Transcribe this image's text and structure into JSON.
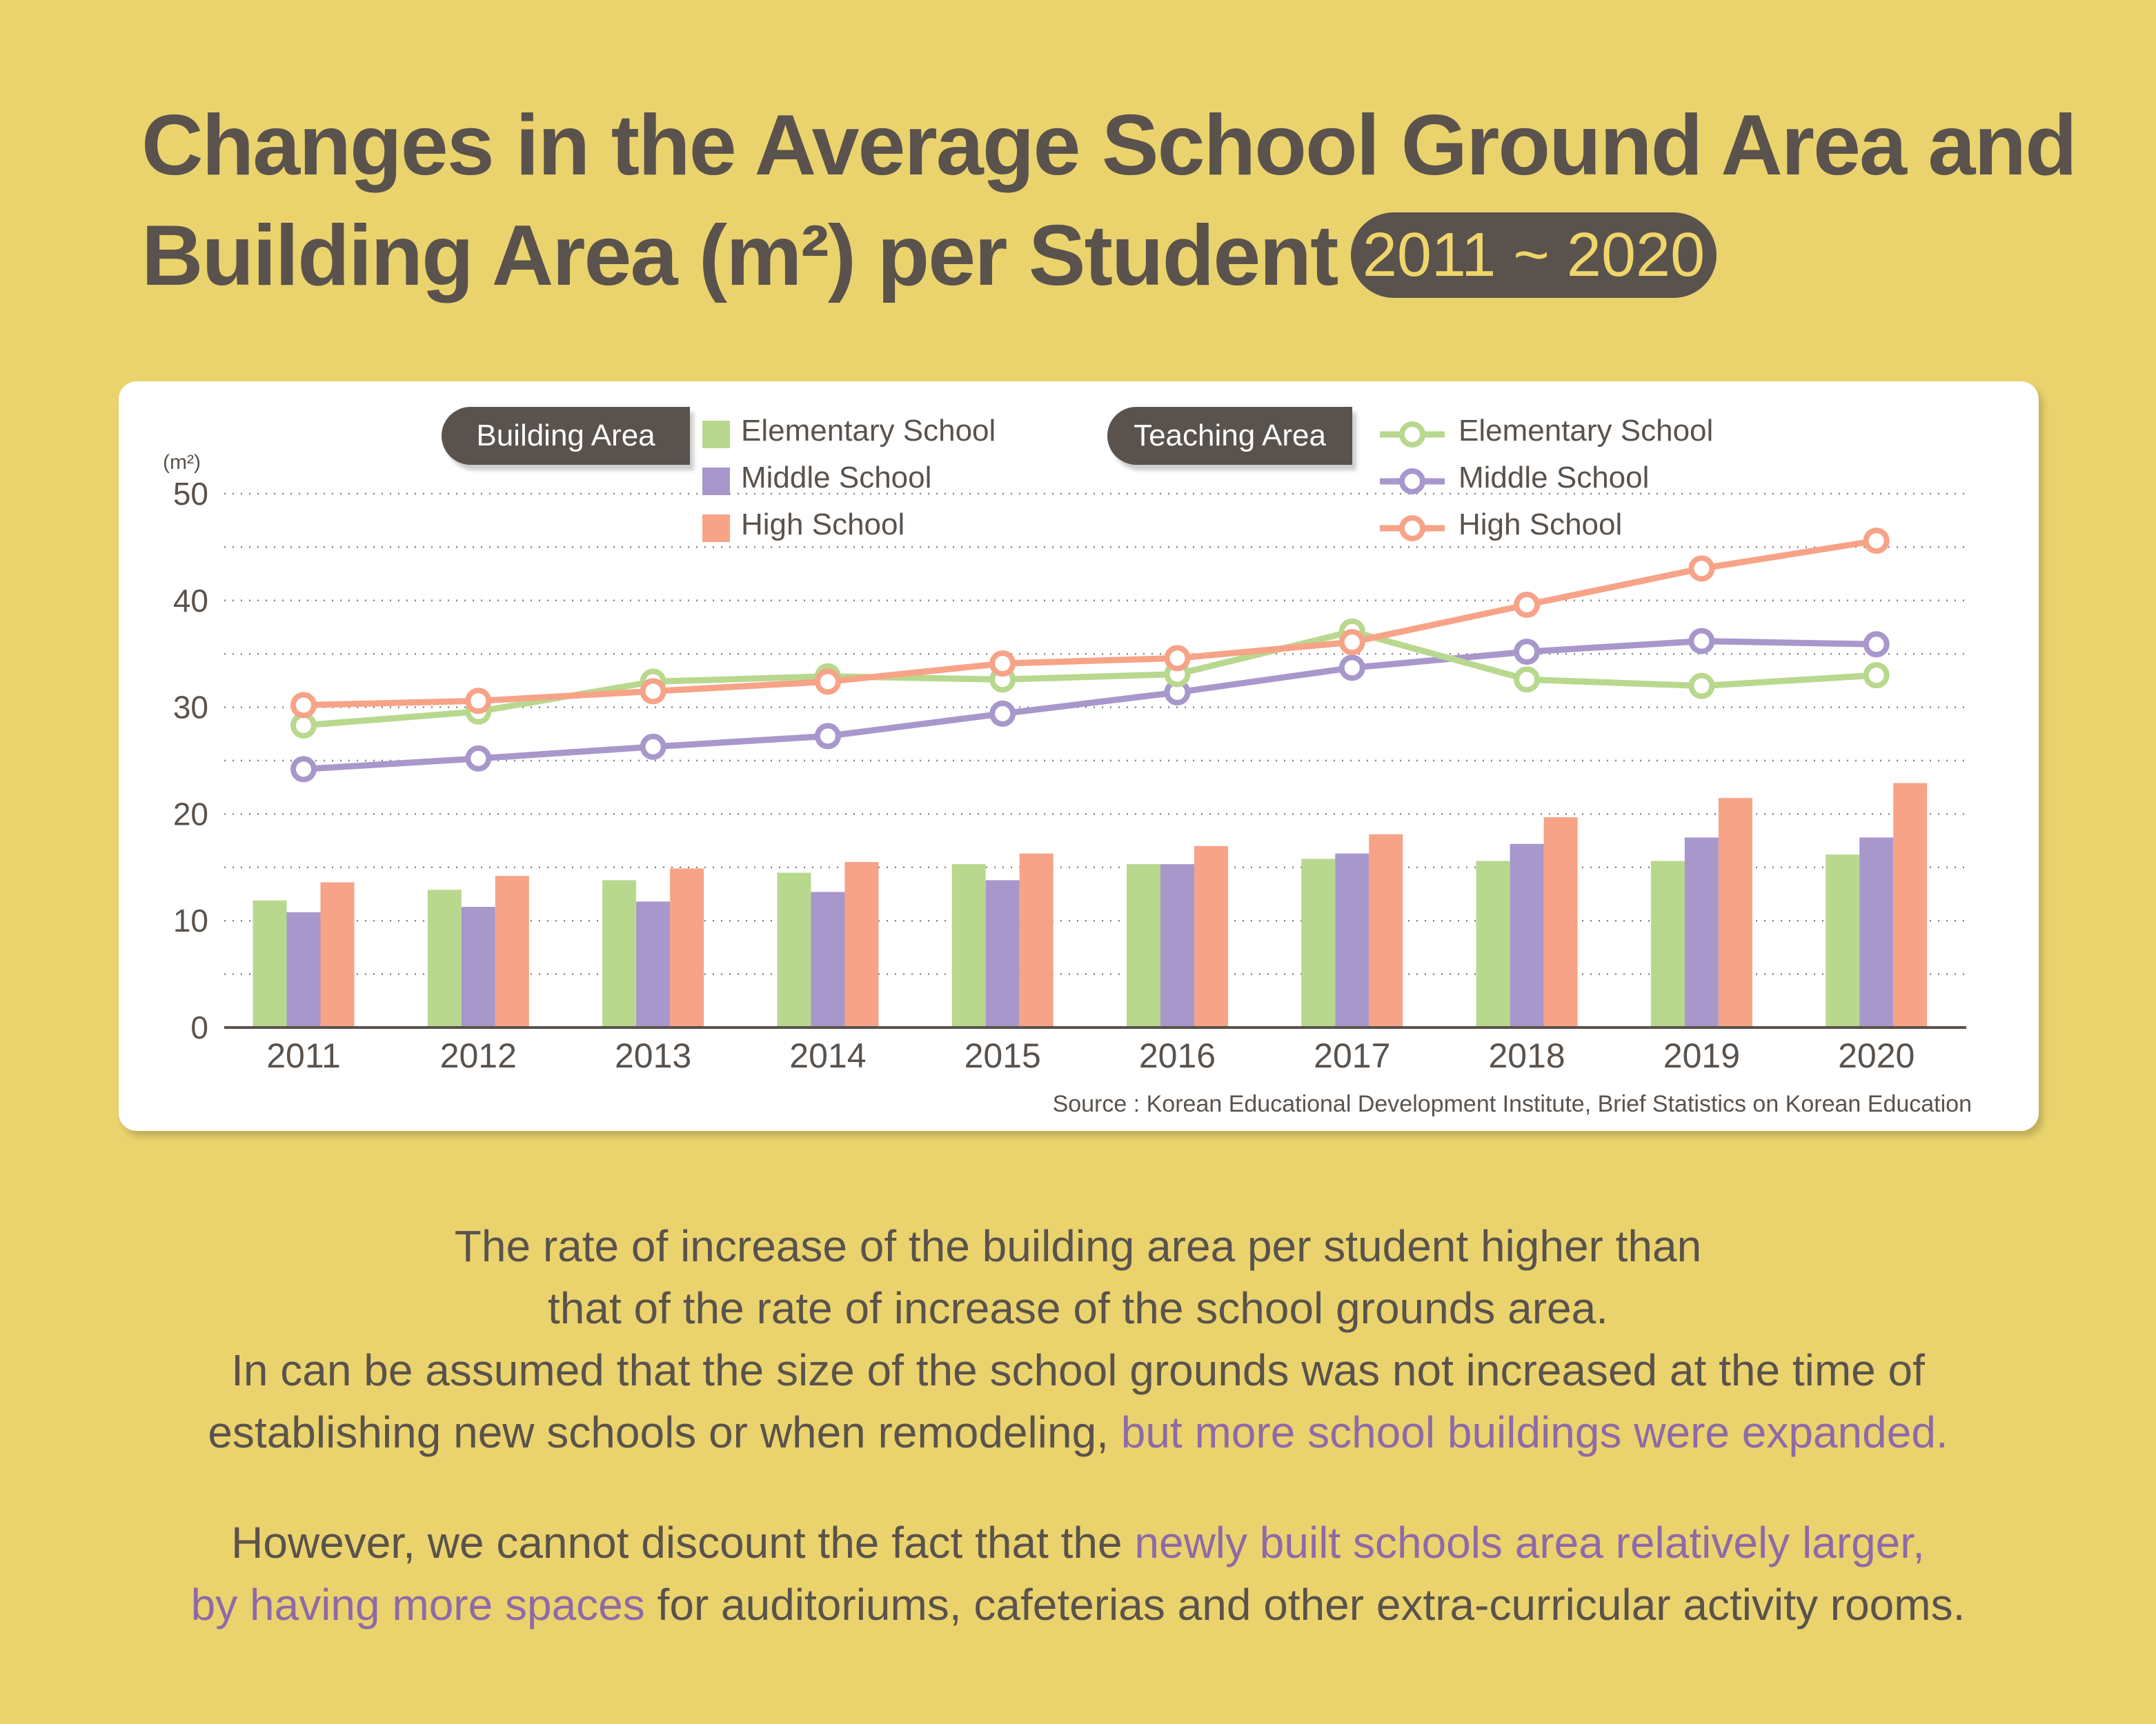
{
  "title": {
    "line1": "Changes in the Average School Ground Area and",
    "line2": "Building Area (m²) per Student",
    "range": "2011 ~ 2020"
  },
  "legend": {
    "building_label": "Building Area",
    "teaching_label": "Teaching Area",
    "building_items": [
      "Elementary School",
      "Middle School",
      "High School"
    ],
    "teaching_items": [
      "Elementary School",
      "Middle School",
      "High School"
    ]
  },
  "colors": {
    "elementary": "#b8d88e",
    "middle": "#a897cb",
    "high": "#f7a387",
    "background": "#ead36d",
    "text": "#5a524c",
    "highlight": "#8e6aa8"
  },
  "chart_data": {
    "type": "bar+line",
    "unit_label": "(m²)",
    "ylim": [
      0,
      50
    ],
    "yticks": [
      "0",
      "10",
      "20",
      "30",
      "40",
      "50"
    ],
    "categories": [
      "2011",
      "2012",
      "2013",
      "2014",
      "2015",
      "2016",
      "2017",
      "2018",
      "2019",
      "2020"
    ],
    "grid": "dotted",
    "bar_series": [
      {
        "name": "Elementary School",
        "color": "#b8d88e",
        "values": [
          11.9,
          12.9,
          13.8,
          14.5,
          15.3,
          15.3,
          15.8,
          15.6,
          15.6,
          16.2
        ]
      },
      {
        "name": "Middle School",
        "color": "#a897cb",
        "values": [
          10.8,
          11.3,
          11.8,
          12.7,
          13.8,
          15.3,
          16.3,
          17.2,
          17.8,
          17.8
        ]
      },
      {
        "name": "High School",
        "color": "#f7a387",
        "values": [
          13.6,
          14.2,
          14.9,
          15.5,
          16.3,
          17.0,
          18.1,
          19.7,
          21.5,
          22.9
        ]
      }
    ],
    "line_series": [
      {
        "name": "Elementary School",
        "color": "#b8d88e",
        "values": [
          28.3,
          29.6,
          32.4,
          32.9,
          32.6,
          33.1,
          37.1,
          32.6,
          32.0,
          33.0
        ]
      },
      {
        "name": "Middle School",
        "color": "#a897cb",
        "values": [
          24.2,
          25.2,
          26.3,
          27.3,
          29.4,
          31.4,
          33.7,
          35.2,
          36.2,
          35.9
        ]
      },
      {
        "name": "High School",
        "color": "#f7a387",
        "values": [
          30.2,
          30.6,
          31.5,
          32.4,
          34.1,
          34.6,
          36.1,
          39.6,
          43.0,
          45.6
        ]
      }
    ],
    "source": "Source : Korean Educational Development Institute, Brief Statistics on Korean Education"
  },
  "description": {
    "line1": "The rate of increase of the building area per student higher than",
    "line2": "that of the rate of increase of the school grounds area.",
    "line3": "In can be assumed that the size of the school grounds was not increased at the time of",
    "line4a": "establishing new schools or when remodeling, ",
    "line4b": "but more school buildings were expanded.",
    "line5a": "However, we cannot discount the fact that the ",
    "line5b": "newly built schools area relatively larger,",
    "line6a": "by having more spaces",
    "line6b": " for auditoriums, cafeterias and other extra-curricular activity rooms."
  }
}
